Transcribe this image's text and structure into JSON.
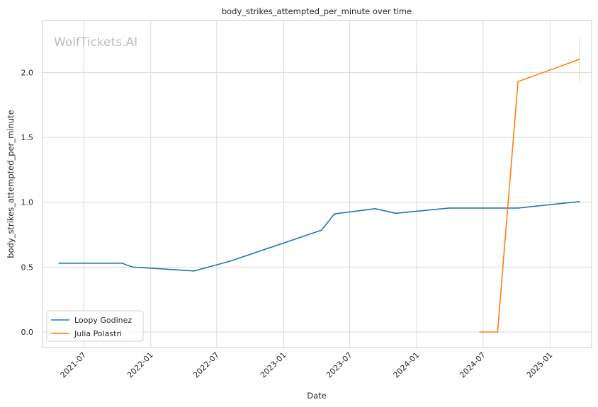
{
  "chart_data": {
    "type": "line",
    "title": "body_strikes_attempted_per_minute over time",
    "xlabel": "Date",
    "ylabel": "body_strikes_attempted_per_minute",
    "watermark": "WolfTickets.AI",
    "xlim": [
      "2021-03-10",
      "2025-04-25"
    ],
    "ylim": [
      -0.12,
      2.4
    ],
    "x_ticks": [
      "2021-07-01",
      "2022-01-01",
      "2022-07-01",
      "2023-01-01",
      "2023-07-01",
      "2024-01-01",
      "2024-07-01",
      "2025-01-01"
    ],
    "x_tick_labels": [
      "2021-07",
      "2022-01",
      "2022-07",
      "2023-01",
      "2023-07",
      "2024-01",
      "2024-07",
      "2025-01"
    ],
    "y_ticks": [
      0.0,
      0.5,
      1.0,
      1.5,
      2.0
    ],
    "y_tick_labels": [
      "0.0",
      "0.5",
      "1.0",
      "1.5",
      "2.0"
    ],
    "grid": true,
    "legend_position": "lower-left",
    "series": [
      {
        "name": "Loopy Godinez",
        "color": "#1f77b4",
        "points": [
          {
            "x": "2021-04-24",
            "y": 0.53
          },
          {
            "x": "2021-10-16",
            "y": 0.53
          },
          {
            "x": "2021-10-23",
            "y": 0.52
          },
          {
            "x": "2021-11-13",
            "y": 0.5
          },
          {
            "x": "2022-04-30",
            "y": 0.47
          },
          {
            "x": "2022-08-06",
            "y": 0.545
          },
          {
            "x": "2023-04-15",
            "y": 0.785
          },
          {
            "x": "2023-05-20",
            "y": 0.91
          },
          {
            "x": "2023-09-09",
            "y": 0.95
          },
          {
            "x": "2023-11-04",
            "y": 0.915
          },
          {
            "x": "2024-03-30",
            "y": 0.955
          },
          {
            "x": "2024-06-29",
            "y": 0.955
          },
          {
            "x": "2024-10-05",
            "y": 0.955
          },
          {
            "x": "2025-03-22",
            "y": 1.005
          }
        ]
      },
      {
        "name": "Julia Polastri",
        "color": "#ff7f0e",
        "points": [
          {
            "x": "2024-06-22",
            "y": 0.0
          },
          {
            "x": "2024-08-10",
            "y": 0.0
          },
          {
            "x": "2024-10-05",
            "y": 1.93
          },
          {
            "x": "2025-03-22",
            "y": 2.1
          }
        ],
        "error_bar": {
          "x": "2025-03-22",
          "low": 1.93,
          "high": 2.27
        }
      }
    ]
  }
}
